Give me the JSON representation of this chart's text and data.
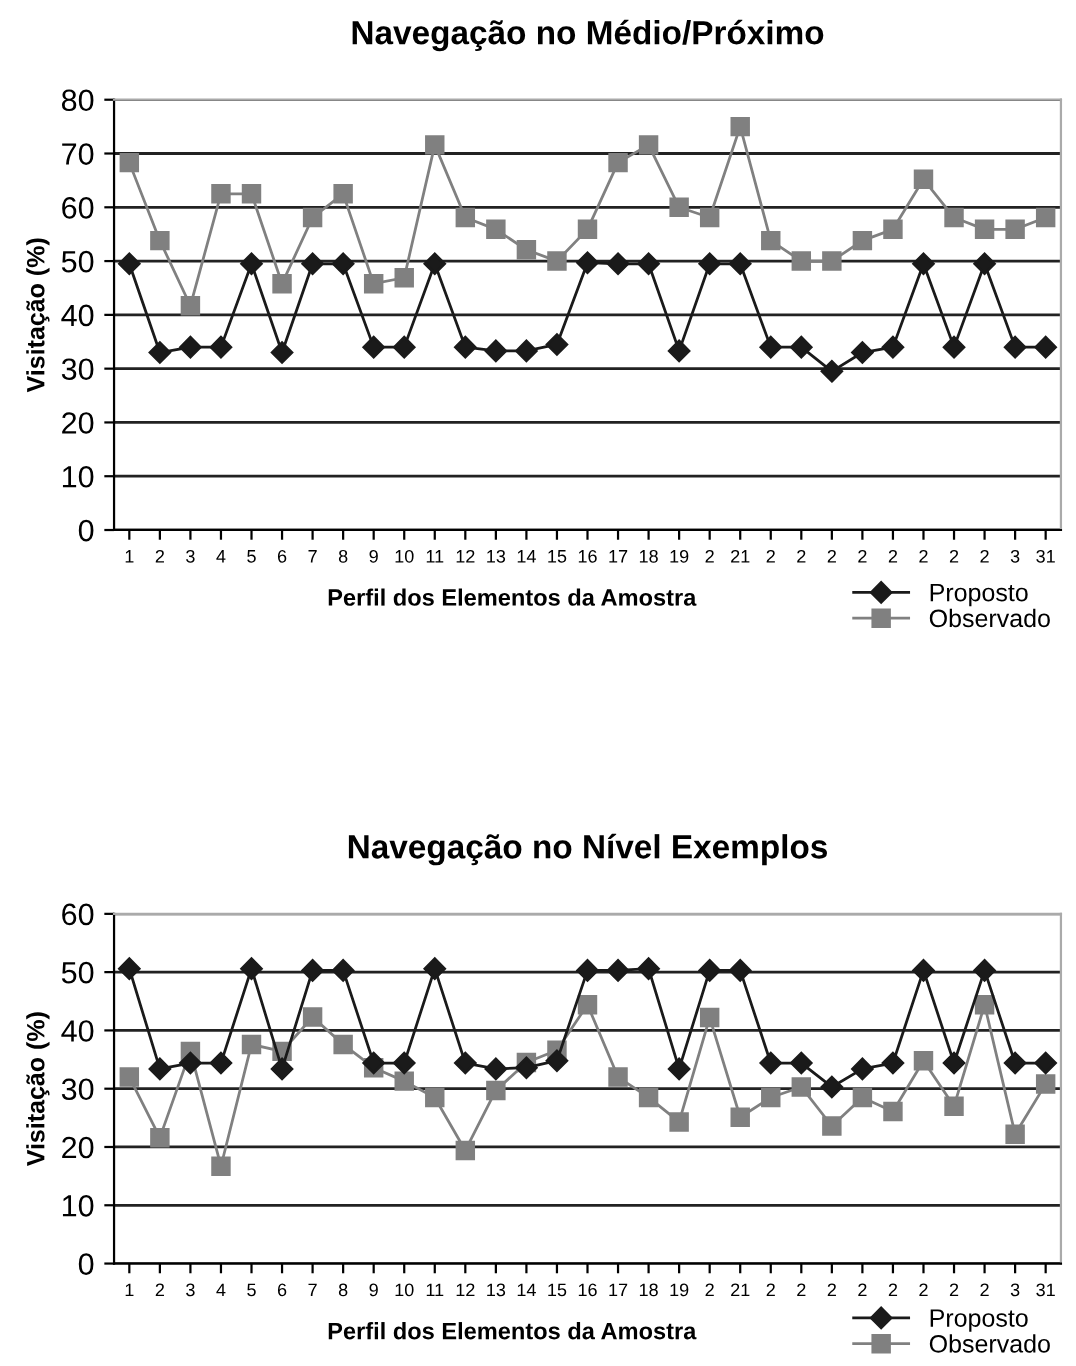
{
  "chart_data": [
    {
      "type": "line",
      "title": "Navegação no Médio/Próximo",
      "xlabel": "Perfil dos Elementos da Amostra",
      "ylabel": "Visitação (%)",
      "categories": [
        "1",
        "2",
        "3",
        "4",
        "5",
        "6",
        "7",
        "8",
        "9",
        "10",
        "11",
        "12",
        "13",
        "14",
        "15",
        "16",
        "17",
        "18",
        "19",
        "2",
        "21",
        "2",
        "2",
        "2",
        "2",
        "2",
        "2",
        "2",
        "2",
        "3",
        "31"
      ],
      "series": [
        {
          "name": "Proposto",
          "color": "#1a1a1a",
          "marker": "diamond",
          "values": [
            49.5,
            33,
            34,
            34,
            49.5,
            33,
            49.5,
            49.5,
            34,
            34,
            49.5,
            34,
            33.3,
            33.3,
            34.5,
            49.7,
            49.5,
            49.5,
            33.3,
            49.5,
            49.5,
            34,
            34,
            29.5,
            33,
            34,
            49.5,
            34,
            49.5,
            34,
            34
          ]
        },
        {
          "name": "Observado",
          "color": "#808080",
          "marker": "square",
          "values": [
            68.3,
            53.8,
            41.7,
            62.5,
            62.5,
            45.8,
            58.1,
            62.5,
            45.8,
            46.9,
            71.6,
            58.1,
            55.9,
            52.1,
            50,
            55.9,
            68.3,
            71.6,
            60,
            58.1,
            75,
            53.8,
            50,
            50,
            53.8,
            55.9,
            65.2,
            58.1,
            55.9,
            55.9,
            58.1
          ]
        }
      ],
      "ylim": [
        0,
        80
      ],
      "yticks": [
        0,
        10,
        20,
        30,
        40,
        50,
        60,
        70,
        80
      ],
      "grid": "y",
      "legend": "bottom right",
      "line_style": "solid"
    },
    {
      "type": "line",
      "title": "Navegação no Nível Exemplos",
      "xlabel": "Perfil dos Elementos da Amostra",
      "ylabel": "Visitação (%)",
      "categories": [
        "1",
        "2",
        "3",
        "4",
        "5",
        "6",
        "7",
        "8",
        "9",
        "10",
        "11",
        "12",
        "13",
        "14",
        "15",
        "16",
        "17",
        "18",
        "19",
        "2",
        "21",
        "2",
        "2",
        "2",
        "2",
        "2",
        "2",
        "2",
        "2",
        "3",
        "31"
      ],
      "series": [
        {
          "name": "Proposto",
          "color": "#1a1a1a",
          "marker": "diamond",
          "values": [
            50.6,
            33.4,
            34.4,
            34.4,
            50.6,
            33.4,
            50.3,
            50.3,
            34.4,
            34.4,
            50.6,
            34.4,
            33.4,
            33.6,
            34.8,
            50.3,
            50.3,
            50.6,
            33.4,
            50.3,
            50.3,
            34.4,
            34.4,
            30.3,
            33.4,
            34.4,
            50.3,
            34.4,
            50.3,
            34.4,
            34.4
          ]
        },
        {
          "name": "Observado",
          "color": "#808080",
          "marker": "square",
          "values": [
            32,
            21.6,
            36.4,
            16.7,
            37.6,
            36.4,
            42.3,
            37.6,
            33.6,
            31.3,
            28.5,
            19.4,
            29.7,
            34.5,
            36.6,
            44.4,
            32,
            28.5,
            24.3,
            42.2,
            25.1,
            28.5,
            30.3,
            23.6,
            28.5,
            26.1,
            34.8,
            27,
            44.4,
            22.2,
            30.8
          ]
        }
      ],
      "ylim": [
        0,
        60
      ],
      "yticks": [
        0,
        10,
        20,
        30,
        40,
        50,
        60
      ],
      "grid": "y",
      "legend": "bottom right",
      "line_style": "solid"
    }
  ]
}
